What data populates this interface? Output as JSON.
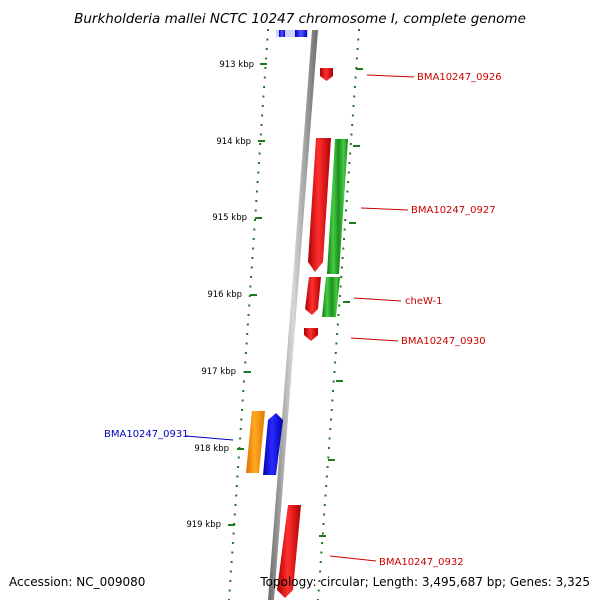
{
  "title": "Burkholderia mallei NCTC 10247 chromosome I, complete genome",
  "accession_text": "Accession: NC_009080",
  "summary_text": "Topology: circular; Length: 3,495,687 bp; Genes: 3,325",
  "colors": {
    "forward_label": "#cc0000",
    "reverse_label": "#0000bb",
    "backbone": "#8a8a8a",
    "tick_dots": "#1f7a1f",
    "red": "#ee0000",
    "green": "#22aa22",
    "blue": "#0000ee",
    "orange": "#ff8c00"
  },
  "ticks": [
    {
      "label": "913 kbp"
    },
    {
      "label": "914 kbp"
    },
    {
      "label": "915 kbp"
    },
    {
      "label": "916 kbp"
    },
    {
      "label": "917 kbp"
    },
    {
      "label": "918 kbp"
    },
    {
      "label": "919 kbp"
    }
  ],
  "genes": [
    {
      "name": "BMA10247_0926",
      "strand": "forward"
    },
    {
      "name": "BMA10247_0927",
      "strand": "forward"
    },
    {
      "name": "cheW-1",
      "strand": "forward"
    },
    {
      "name": "BMA10247_0930",
      "strand": "forward"
    },
    {
      "name": "BMA10247_0931",
      "strand": "reverse"
    },
    {
      "name": "BMA10247_0932",
      "strand": "forward"
    }
  ]
}
